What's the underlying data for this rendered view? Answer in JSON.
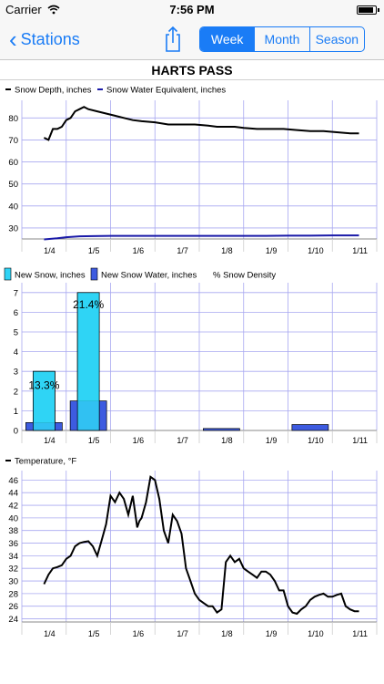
{
  "status_bar": {
    "carrier": "Carrier",
    "time": "7:56 PM",
    "battery_level": 0.9
  },
  "nav": {
    "back_label": "Stations",
    "segments": [
      {
        "label": "Week",
        "active": true
      },
      {
        "label": "Month",
        "active": false
      },
      {
        "label": "Season",
        "active": false
      }
    ]
  },
  "station_title": "HARTS PASS",
  "colors": {
    "accent": "#1a7cf6",
    "depth": "#000000",
    "swe": "#1a1aa8",
    "new_snow": "#2fd3f5",
    "new_water": "#3d5be0",
    "grid": "#a8a8f0"
  },
  "x_labels": [
    "1/4",
    "1/5",
    "1/6",
    "1/7",
    "1/8",
    "1/9",
    "1/10",
    "1/11"
  ],
  "chart_data": [
    {
      "type": "line",
      "legend": [
        "Snow Depth, inches",
        "Snow Water Equivalent, inches"
      ],
      "ylim": [
        25,
        88
      ],
      "yticks": [
        30,
        40,
        50,
        60,
        70,
        80
      ],
      "xlim": [
        0,
        8
      ],
      "series": [
        {
          "name": "Snow Depth, inches",
          "x": [
            0.5,
            0.6,
            0.7,
            0.8,
            0.9,
            1.0,
            1.1,
            1.2,
            1.3,
            1.4,
            1.5,
            1.7,
            1.9,
            2.1,
            2.3,
            2.5,
            2.7,
            3.0,
            3.3,
            3.6,
            3.9,
            4.2,
            4.4,
            4.6,
            4.8,
            5.0,
            5.3,
            5.6,
            5.9,
            6.2,
            6.5,
            6.8,
            7.1,
            7.4,
            7.6
          ],
          "values": [
            71,
            70,
            75,
            75,
            76,
            79,
            80,
            83,
            84,
            85,
            84,
            83,
            82,
            81,
            80,
            79,
            78.5,
            78,
            77,
            77,
            77,
            76.5,
            76,
            76,
            76,
            75.5,
            75,
            75,
            75,
            74.5,
            74,
            74,
            73.5,
            73,
            73
          ]
        },
        {
          "name": "Snow Water Equivalent, inches",
          "x": [
            0.5,
            0.8,
            1.0,
            1.3,
            1.6,
            2.0,
            2.5,
            3.0,
            3.5,
            4.0,
            4.5,
            5.0,
            5.5,
            6.0,
            6.5,
            7.0,
            7.6
          ],
          "values": [
            24.8,
            25.3,
            25.8,
            26.2,
            26.3,
            26.4,
            26.4,
            26.4,
            26.4,
            26.4,
            26.4,
            26.4,
            26.4,
            26.5,
            26.5,
            26.6,
            26.6
          ]
        }
      ]
    },
    {
      "type": "bar",
      "legend": [
        "New Snow, inches",
        "New Snow Water, inches",
        "% Snow Density"
      ],
      "ylim": [
        0,
        7.5
      ],
      "yticks": [
        0,
        1,
        2,
        3,
        4,
        5,
        6,
        7
      ],
      "categories": [
        "1/4",
        "1/5",
        "1/6",
        "1/7",
        "1/8",
        "1/9",
        "1/10",
        "1/11"
      ],
      "series": [
        {
          "name": "New Snow, inches",
          "values": [
            3,
            7,
            0,
            0,
            0,
            0,
            0,
            0
          ]
        },
        {
          "name": "New Snow Water, inches",
          "values": [
            0.4,
            1.5,
            0,
            0,
            0.1,
            0,
            0.3,
            0
          ]
        }
      ],
      "density_labels": [
        "13.3%",
        "21.4%"
      ]
    },
    {
      "type": "line",
      "legend": [
        "Temperature, °F"
      ],
      "ylim": [
        23.5,
        47.5
      ],
      "yticks": [
        24,
        26,
        28,
        30,
        32,
        34,
        36,
        38,
        40,
        42,
        44,
        46
      ],
      "xlim": [
        0,
        8
      ],
      "series": [
        {
          "name": "Temperature, °F",
          "x": [
            0.5,
            0.6,
            0.7,
            0.8,
            0.9,
            1.0,
            1.1,
            1.2,
            1.3,
            1.4,
            1.5,
            1.6,
            1.7,
            1.8,
            1.9,
            2.0,
            2.1,
            2.2,
            2.3,
            2.4,
            2.5,
            2.6,
            2.65,
            2.7,
            2.8,
            2.9,
            3.0,
            3.1,
            3.2,
            3.3,
            3.4,
            3.5,
            3.6,
            3.7,
            3.8,
            3.9,
            4.0,
            4.1,
            4.2,
            4.3,
            4.4,
            4.5,
            4.6,
            4.7,
            4.8,
            4.9,
            5.0,
            5.1,
            5.2,
            5.3,
            5.4,
            5.5,
            5.6,
            5.7,
            5.8,
            5.9,
            6.0,
            6.1,
            6.2,
            6.3,
            6.4,
            6.5,
            6.6,
            6.7,
            6.8,
            6.9,
            7.0,
            7.1,
            7.2,
            7.3,
            7.4,
            7.5,
            7.6
          ],
          "values": [
            29.5,
            31,
            32,
            32.2,
            32.5,
            33.5,
            34,
            35.5,
            36,
            36.2,
            36.3,
            35.5,
            34,
            36.5,
            39,
            43.5,
            42.5,
            44,
            43,
            40.5,
            43.5,
            38.5,
            39.5,
            40,
            42.5,
            46.5,
            46,
            43,
            38,
            36,
            40.5,
            39.5,
            37.5,
            32,
            30,
            28,
            27,
            26.5,
            26,
            26,
            25,
            25.5,
            33,
            34,
            33,
            33.5,
            32,
            31.5,
            31,
            30.5,
            31.5,
            31.5,
            31,
            30,
            28.5,
            28.5,
            26,
            25,
            24.8,
            25.5,
            26,
            27,
            27.5,
            27.8,
            28,
            27.5,
            27.5,
            27.8,
            28,
            26,
            25.5,
            25.2,
            25.2
          ]
        }
      ]
    }
  ]
}
